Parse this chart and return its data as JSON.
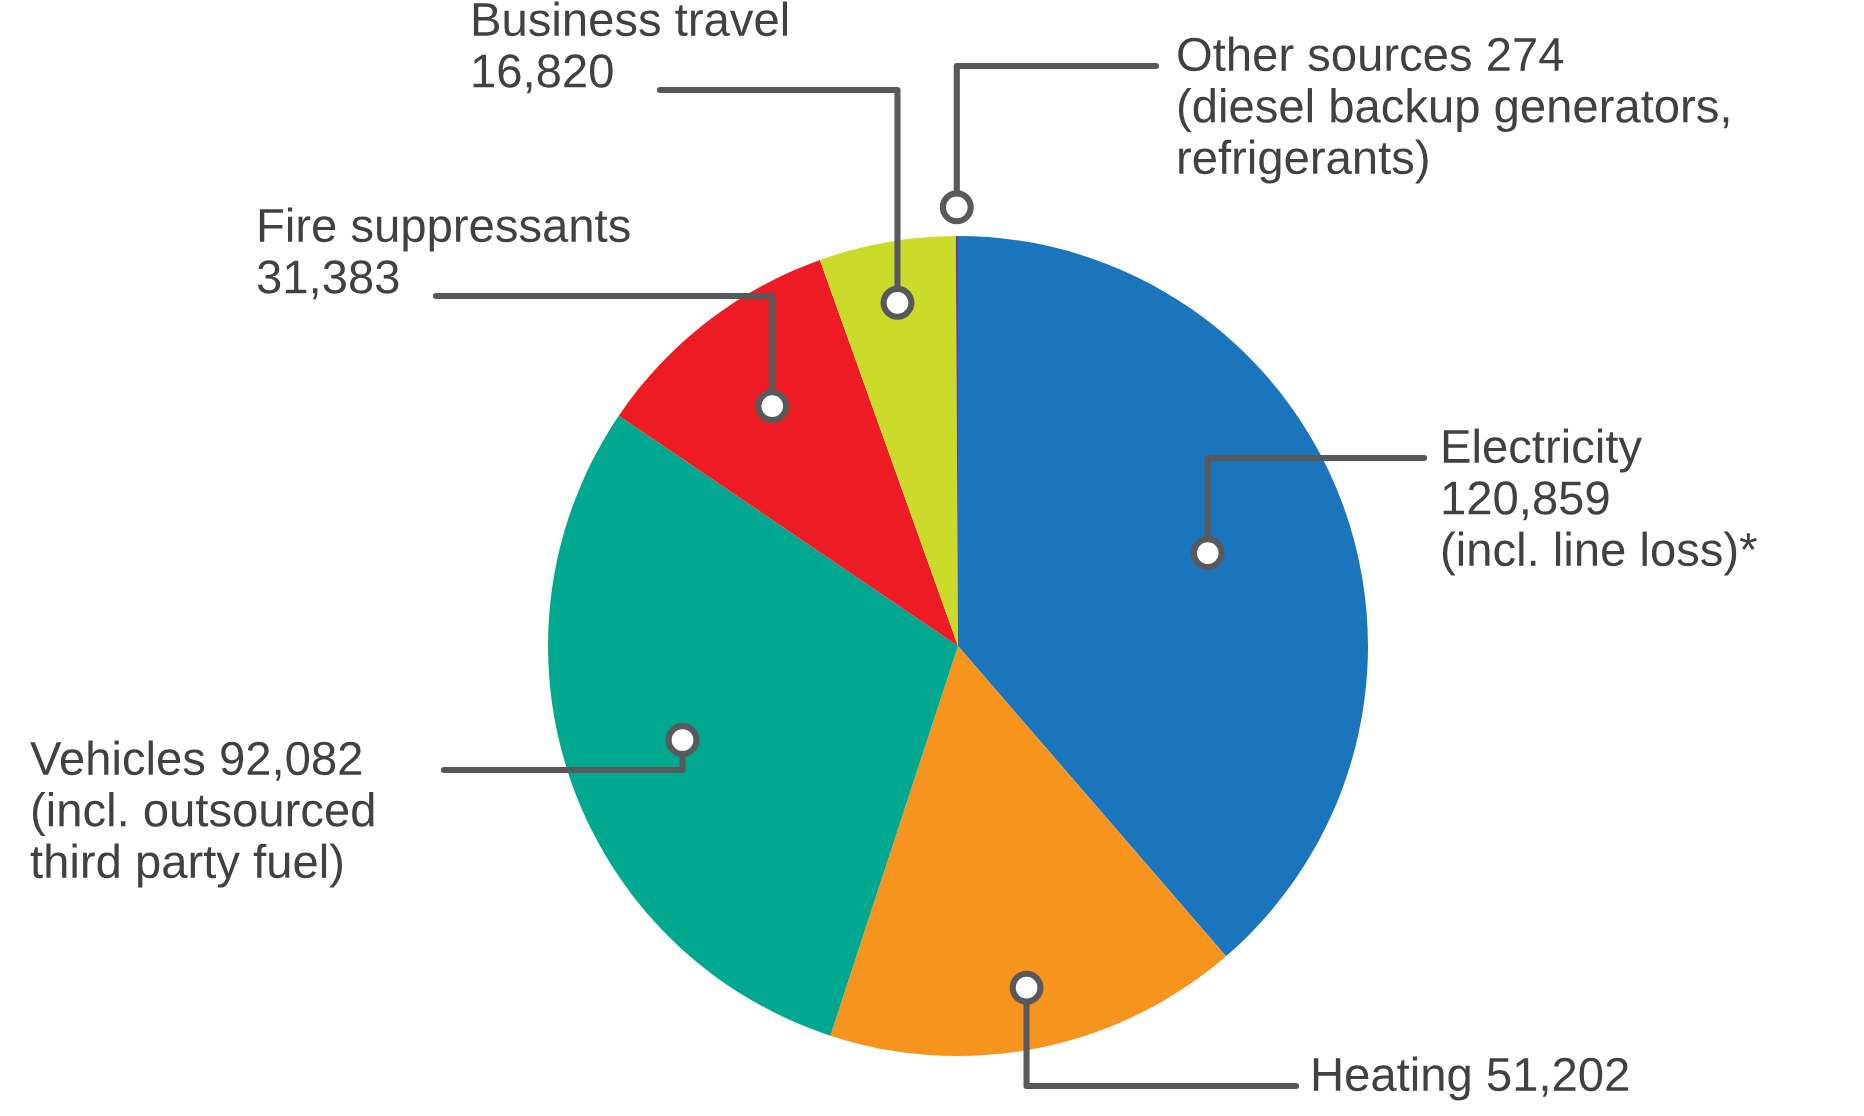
{
  "chart_data": {
    "type": "pie",
    "categories": [
      "Electricity",
      "Heating",
      "Vehicles",
      "Fire suppressants",
      "Business travel",
      "Other sources"
    ],
    "values": [
      120859,
      51202,
      92082,
      31383,
      16820,
      274
    ],
    "colors": [
      "#1b75bc",
      "#f7941d",
      "#00a88f",
      "#ed1c24",
      "#cbdb2a",
      "#6a3d9a"
    ],
    "value_labels": [
      "120,859\n(incl. line loss)*",
      "51,202",
      "92,082\n(incl. outsourced\nthird party fuel)",
      "31,383",
      "16,820",
      "274\n(diesel backup generators,\nrefrigerants)"
    ]
  }
}
